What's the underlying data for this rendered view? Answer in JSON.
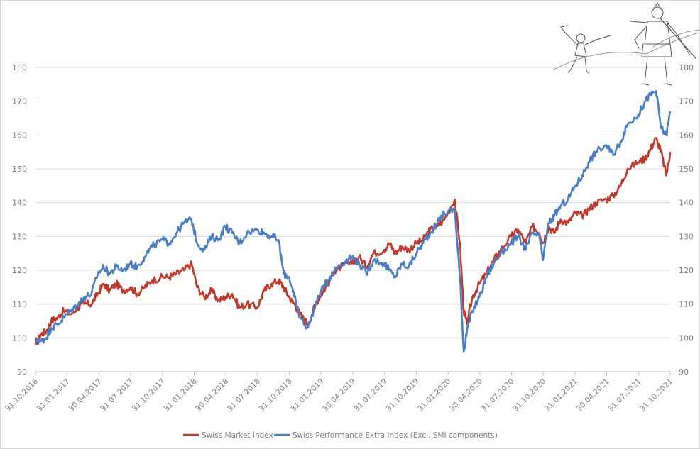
{
  "chart_data": {
    "type": "line",
    "title": "",
    "xlabel": "",
    "ylabel": "",
    "ylim": [
      90,
      180
    ],
    "yticks": [
      90,
      100,
      110,
      120,
      130,
      140,
      150,
      160,
      170,
      180
    ],
    "y_axis_left": true,
    "y_axis_right": true,
    "grid": "horizontal",
    "legend_position": "bottom-center",
    "x_tick_labels": [
      "31.10.2016",
      "31.01.2017",
      "30.04.2017",
      "31.07.2017",
      "31.10.2017",
      "31.01.2018",
      "30.04.2018",
      "31.07.2018",
      "31.10.2018",
      "31.01.2019",
      "30.04.2019",
      "31.07.2019",
      "31.10.2019",
      "31.01.2020",
      "30.04.2020",
      "31.07.2020",
      "31.10.2020",
      "31.01.2021",
      "30.04.2021",
      "31.07.2021",
      "31.10.2021"
    ],
    "series": [
      {
        "name": "Swiss Market Index",
        "color": "#c0392b",
        "x": [
          "2016-10-31",
          "2016-11-15",
          "2016-12-01",
          "2016-12-15",
          "2017-01-03",
          "2017-01-20",
          "2017-02-10",
          "2017-03-01",
          "2017-03-20",
          "2017-04-10",
          "2017-04-28",
          "2017-05-15",
          "2017-06-01",
          "2017-06-20",
          "2017-07-10",
          "2017-07-31",
          "2017-08-20",
          "2017-09-10",
          "2017-10-01",
          "2017-10-31",
          "2017-11-20",
          "2017-12-10",
          "2018-01-01",
          "2018-01-23",
          "2018-02-08",
          "2018-03-01",
          "2018-03-22",
          "2018-04-10",
          "2018-04-30",
          "2018-05-20",
          "2018-06-10",
          "2018-07-01",
          "2018-07-31",
          "2018-08-20",
          "2018-09-10",
          "2018-09-30",
          "2018-10-15",
          "2018-10-31",
          "2018-11-15",
          "2018-12-01",
          "2018-12-24",
          "2019-01-15",
          "2019-01-31",
          "2019-02-20",
          "2019-03-10",
          "2019-03-30",
          "2019-04-30",
          "2019-05-20",
          "2019-06-10",
          "2019-06-30",
          "2019-07-31",
          "2019-08-15",
          "2019-09-01",
          "2019-09-20",
          "2019-10-10",
          "2019-10-31",
          "2019-11-20",
          "2019-12-10",
          "2019-12-31",
          "2020-01-20",
          "2020-02-19",
          "2020-03-05",
          "2020-03-16",
          "2020-03-25",
          "2020-04-10",
          "2020-04-30",
          "2020-05-20",
          "2020-06-10",
          "2020-06-30",
          "2020-07-31",
          "2020-08-20",
          "2020-09-10",
          "2020-09-30",
          "2020-10-20",
          "2020-10-30",
          "2020-11-15",
          "2020-12-01",
          "2020-12-20",
          "2021-01-10",
          "2021-01-31",
          "2021-02-20",
          "2021-03-10",
          "2021-03-31",
          "2021-04-30",
          "2021-05-20",
          "2021-06-10",
          "2021-06-30",
          "2021-07-31",
          "2021-08-20",
          "2021-09-05",
          "2021-09-20",
          "2021-10-05",
          "2021-10-20",
          "2021-10-31"
        ],
        "y": [
          98,
          101,
          102,
          105,
          106,
          108,
          107,
          109,
          110,
          110,
          113,
          116,
          114,
          116,
          114,
          115,
          113,
          115,
          117,
          118,
          118,
          119,
          120,
          122,
          115,
          112,
          114,
          111,
          112,
          113,
          109,
          110,
          109,
          114,
          116,
          117,
          115,
          112,
          110,
          107,
          104,
          110,
          113,
          116,
          120,
          121,
          122,
          124,
          121,
          125,
          126,
          128,
          125,
          127,
          126,
          128,
          129,
          132,
          133,
          135,
          141,
          128,
          108,
          104,
          112,
          116,
          119,
          123,
          126,
          130,
          132,
          128,
          133,
          131,
          128,
          133,
          131,
          135,
          134,
          137,
          136,
          138,
          140,
          141,
          142,
          145,
          150,
          152,
          153,
          156,
          159,
          155,
          148,
          155
        ],
        "values": [
          98,
          101,
          102,
          105,
          106,
          108,
          107,
          109,
          110,
          110,
          113,
          116,
          114,
          116,
          114,
          115,
          113,
          115,
          117,
          118,
          118,
          119,
          120,
          122,
          115,
          112,
          114,
          111,
          112,
          113,
          109,
          110,
          109,
          114,
          116,
          117,
          115,
          112,
          110,
          107,
          104,
          110,
          113,
          116,
          120,
          121,
          122,
          124,
          121,
          125,
          126,
          128,
          125,
          127,
          126,
          128,
          129,
          132,
          133,
          135,
          141,
          128,
          108,
          104,
          112,
          116,
          119,
          123,
          126,
          130,
          132,
          128,
          133,
          131,
          128,
          133,
          131,
          135,
          134,
          137,
          136,
          138,
          140,
          141,
          142,
          145,
          150,
          152,
          153,
          156,
          159,
          155,
          148,
          155
        ]
      },
      {
        "name": "Swiss Performance Extra Index (Excl. SMI components)",
        "color": "#4a7ec4",
        "x": [
          "2016-10-31",
          "2016-11-15",
          "2016-12-01",
          "2016-12-15",
          "2017-01-03",
          "2017-01-20",
          "2017-02-10",
          "2017-03-01",
          "2017-03-20",
          "2017-04-10",
          "2017-04-28",
          "2017-05-15",
          "2017-06-01",
          "2017-06-20",
          "2017-07-10",
          "2017-07-31",
          "2017-08-20",
          "2017-09-10",
          "2017-10-01",
          "2017-10-31",
          "2017-11-20",
          "2017-12-10",
          "2018-01-01",
          "2018-01-23",
          "2018-02-08",
          "2018-03-01",
          "2018-03-22",
          "2018-04-10",
          "2018-04-30",
          "2018-05-20",
          "2018-06-10",
          "2018-07-01",
          "2018-07-31",
          "2018-08-20",
          "2018-09-10",
          "2018-09-30",
          "2018-10-15",
          "2018-10-31",
          "2018-11-15",
          "2018-12-01",
          "2018-12-24",
          "2019-01-15",
          "2019-01-31",
          "2019-02-20",
          "2019-03-10",
          "2019-03-30",
          "2019-04-30",
          "2019-05-20",
          "2019-06-10",
          "2019-06-30",
          "2019-07-31",
          "2019-08-15",
          "2019-09-01",
          "2019-09-20",
          "2019-10-10",
          "2019-10-31",
          "2019-11-20",
          "2019-12-10",
          "2019-12-31",
          "2020-01-20",
          "2020-02-19",
          "2020-03-05",
          "2020-03-16",
          "2020-03-25",
          "2020-04-10",
          "2020-04-30",
          "2020-05-20",
          "2020-06-10",
          "2020-06-30",
          "2020-07-31",
          "2020-08-20",
          "2020-09-10",
          "2020-09-30",
          "2020-10-20",
          "2020-10-30",
          "2020-11-15",
          "2020-12-01",
          "2020-12-20",
          "2021-01-10",
          "2021-01-31",
          "2021-02-20",
          "2021-03-10",
          "2021-03-31",
          "2021-04-30",
          "2021-05-20",
          "2021-06-10",
          "2021-06-30",
          "2021-07-31",
          "2021-08-20",
          "2021-09-05",
          "2021-09-20",
          "2021-10-05",
          "2021-10-20",
          "2021-10-31"
        ],
        "y": [
          99,
          99,
          100,
          103,
          104,
          106,
          108,
          110,
          112,
          113,
          119,
          121,
          119,
          121,
          120,
          122,
          121,
          124,
          127,
          129,
          128,
          131,
          134,
          135,
          128,
          126,
          130,
          129,
          133,
          131,
          128,
          131,
          132,
          131,
          130,
          129,
          119,
          118,
          112,
          106,
          103,
          110,
          114,
          117,
          120,
          122,
          124,
          122,
          119,
          123,
          122,
          120,
          118,
          122,
          121,
          125,
          128,
          131,
          134,
          137,
          138,
          118,
          96,
          102,
          108,
          112,
          118,
          122,
          125,
          128,
          130,
          126,
          131,
          130,
          123,
          134,
          136,
          139,
          141,
          145,
          148,
          152,
          155,
          157,
          154,
          158,
          163,
          166,
          170,
          172,
          173,
          162,
          160,
          167
        ],
        "values": [
          99,
          99,
          100,
          103,
          104,
          106,
          108,
          110,
          112,
          113,
          119,
          121,
          119,
          121,
          120,
          122,
          121,
          124,
          127,
          129,
          128,
          131,
          134,
          135,
          128,
          126,
          130,
          129,
          133,
          131,
          128,
          131,
          132,
          131,
          130,
          129,
          119,
          118,
          112,
          106,
          103,
          110,
          114,
          117,
          120,
          122,
          124,
          122,
          119,
          123,
          122,
          120,
          118,
          122,
          121,
          125,
          128,
          131,
          134,
          137,
          138,
          118,
          96,
          102,
          108,
          112,
          118,
          122,
          125,
          128,
          130,
          126,
          131,
          130,
          123,
          134,
          136,
          139,
          141,
          145,
          148,
          152,
          155,
          157,
          154,
          158,
          163,
          166,
          170,
          172,
          173,
          162,
          160,
          167
        ]
      }
    ],
    "decoration_icon": "david-and-goliath-sketch-icon"
  }
}
